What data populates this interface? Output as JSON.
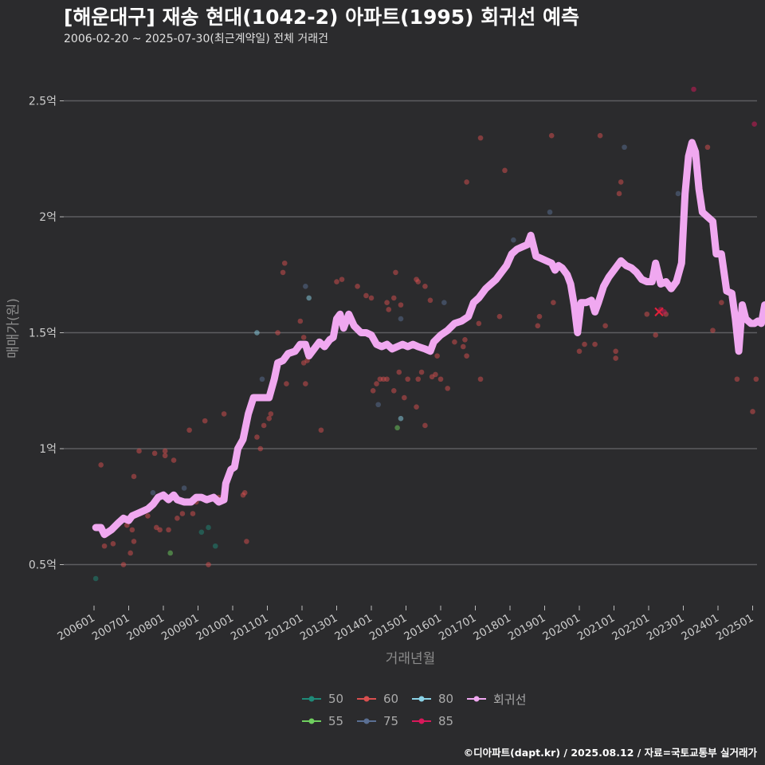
{
  "header": {
    "title": "[해운대구] 재송 현대(1042-2) 아파트(1995) 회귀선 예측",
    "subtitle": "2006-02-20 ~ 2025-07-30(최근계약일) 전체 거래건"
  },
  "caption": "©디아파트(dapt.kr) / 2025.08.12 / 자료=국토교통부 실거래가",
  "legend": {
    "items": [
      {
        "label": "50",
        "color": "#1f8a78"
      },
      {
        "label": "55",
        "color": "#6fcf5f"
      },
      {
        "label": "60",
        "color": "#d94f4f"
      },
      {
        "label": "75",
        "color": "#5a6f93"
      },
      {
        "label": "80",
        "color": "#8ad2e6"
      },
      {
        "label": "85",
        "color": "#d8185a"
      },
      {
        "label": "회귀선",
        "color": "#f0a8f0"
      }
    ]
  },
  "chart_data": {
    "type": "scatter",
    "title": "[해운대구] 재송 현대(1042-2) 아파트(1995) 회귀선 예측",
    "xlabel": "거래년월",
    "ylabel": "매매가(원)",
    "xlim": [
      2006.0,
      2026.0
    ],
    "ylim": [
      0.33,
      2.66
    ],
    "x_ticks": [
      {
        "v": 2006.0,
        "label": "200601"
      },
      {
        "v": 2007.0,
        "label": "200701"
      },
      {
        "v": 2008.0,
        "label": "200801"
      },
      {
        "v": 2009.0,
        "label": "200901"
      },
      {
        "v": 2010.0,
        "label": "201001"
      },
      {
        "v": 2011.0,
        "label": "201101"
      },
      {
        "v": 2012.0,
        "label": "201201"
      },
      {
        "v": 2013.0,
        "label": "201301"
      },
      {
        "v": 2014.0,
        "label": "201401"
      },
      {
        "v": 2015.0,
        "label": "201501"
      },
      {
        "v": 2016.0,
        "label": "201601"
      },
      {
        "v": 2017.0,
        "label": "201701"
      },
      {
        "v": 2018.0,
        "label": "201801"
      },
      {
        "v": 2019.0,
        "label": "201901"
      },
      {
        "v": 2020.0,
        "label": "202001"
      },
      {
        "v": 2021.0,
        "label": "202101"
      },
      {
        "v": 2022.0,
        "label": "202201"
      },
      {
        "v": 2023.0,
        "label": "202301"
      },
      {
        "v": 2024.0,
        "label": "202401"
      },
      {
        "v": 2025.0,
        "label": "202501"
      }
    ],
    "y_ticks": [
      {
        "v": 0.5,
        "label": "0.5억"
      },
      {
        "v": 1.0,
        "label": "1억"
      },
      {
        "v": 1.5,
        "label": "1.5억"
      },
      {
        "v": 2.0,
        "label": "2억"
      },
      {
        "v": 2.5,
        "label": "2.5억"
      }
    ],
    "series": [
      {
        "name": "50",
        "color": "#1f8a78",
        "points": [
          [
            2006.05,
            0.44
          ],
          [
            2009.1,
            0.64
          ],
          [
            2009.3,
            0.66
          ],
          [
            2009.5,
            0.58
          ]
        ]
      },
      {
        "name": "55",
        "color": "#6fcf5f",
        "points": [
          [
            2008.2,
            0.55
          ],
          [
            2014.75,
            1.09
          ]
        ]
      },
      {
        "name": "60",
        "color": "#d94f4f",
        "points": [
          [
            2006.2,
            0.93
          ],
          [
            2006.3,
            0.58
          ],
          [
            2006.55,
            0.59
          ],
          [
            2006.85,
            0.5
          ],
          [
            2006.95,
            0.67
          ],
          [
            2007.05,
            0.55
          ],
          [
            2007.15,
            0.6
          ],
          [
            2007.1,
            0.65
          ],
          [
            2007.15,
            0.88
          ],
          [
            2007.3,
            0.99
          ],
          [
            2007.55,
            0.71
          ],
          [
            2007.75,
            0.98
          ],
          [
            2007.8,
            0.66
          ],
          [
            2007.9,
            0.65
          ],
          [
            2008.05,
            0.99
          ],
          [
            2008.05,
            0.97
          ],
          [
            2008.15,
            0.65
          ],
          [
            2008.3,
            0.95
          ],
          [
            2008.4,
            0.7
          ],
          [
            2008.55,
            0.72
          ],
          [
            2008.75,
            1.08
          ],
          [
            2008.85,
            0.72
          ],
          [
            2008.95,
            0.77
          ],
          [
            2009.2,
            1.12
          ],
          [
            2009.3,
            0.5
          ],
          [
            2009.6,
            0.79
          ],
          [
            2009.75,
            1.15
          ],
          [
            2010.3,
            0.8
          ],
          [
            2010.35,
            0.81
          ],
          [
            2010.4,
            0.6
          ],
          [
            2010.7,
            1.05
          ],
          [
            2010.8,
            1.0
          ],
          [
            2010.9,
            1.1
          ],
          [
            2011.05,
            1.13
          ],
          [
            2011.1,
            1.15
          ],
          [
            2011.3,
            1.5
          ],
          [
            2011.45,
            1.76
          ],
          [
            2011.5,
            1.8
          ],
          [
            2011.55,
            1.28
          ],
          [
            2011.95,
            1.55
          ],
          [
            2012.05,
            1.48
          ],
          [
            2012.05,
            1.37
          ],
          [
            2012.1,
            1.28
          ],
          [
            2012.15,
            1.38
          ],
          [
            2012.55,
            1.08
          ],
          [
            2013.0,
            1.72
          ],
          [
            2013.15,
            1.73
          ],
          [
            2013.6,
            1.7
          ],
          [
            2013.85,
            1.66
          ],
          [
            2014.0,
            1.65
          ],
          [
            2014.05,
            1.25
          ],
          [
            2014.15,
            1.28
          ],
          [
            2014.25,
            1.3
          ],
          [
            2014.35,
            1.3
          ],
          [
            2014.45,
            1.3
          ],
          [
            2014.45,
            1.63
          ],
          [
            2014.5,
            1.6
          ],
          [
            2014.65,
            1.65
          ],
          [
            2014.7,
            1.76
          ],
          [
            2014.85,
            1.62
          ],
          [
            2014.65,
            1.25
          ],
          [
            2014.8,
            1.33
          ],
          [
            2014.95,
            1.22
          ],
          [
            2015.05,
            1.3
          ],
          [
            2015.3,
            1.18
          ],
          [
            2015.35,
            1.3
          ],
          [
            2015.3,
            1.73
          ],
          [
            2015.35,
            1.72
          ],
          [
            2015.45,
            1.33
          ],
          [
            2015.55,
            1.1
          ],
          [
            2015.55,
            1.7
          ],
          [
            2015.7,
            1.64
          ],
          [
            2015.75,
            1.31
          ],
          [
            2015.85,
            1.32
          ],
          [
            2015.9,
            1.4
          ],
          [
            2016.0,
            1.3
          ],
          [
            2016.2,
            1.26
          ],
          [
            2016.4,
            1.46
          ],
          [
            2016.65,
            1.44
          ],
          [
            2016.7,
            1.47
          ],
          [
            2016.75,
            1.4
          ],
          [
            2016.75,
            2.15
          ],
          [
            2017.1,
            1.54
          ],
          [
            2017.15,
            1.3
          ],
          [
            2017.15,
            2.34
          ],
          [
            2017.7,
            1.57
          ],
          [
            2017.85,
            2.2
          ],
          [
            2018.8,
            1.53
          ],
          [
            2018.85,
            1.57
          ],
          [
            2019.2,
            2.35
          ],
          [
            2019.25,
            1.63
          ],
          [
            2020.0,
            1.42
          ],
          [
            2020.15,
            1.45
          ],
          [
            2020.45,
            1.45
          ],
          [
            2020.6,
            2.35
          ],
          [
            2020.75,
            1.53
          ],
          [
            2021.05,
            1.39
          ],
          [
            2021.05,
            1.42
          ],
          [
            2021.15,
            2.1
          ],
          [
            2021.2,
            2.15
          ],
          [
            2021.95,
            1.58
          ],
          [
            2022.2,
            1.49
          ],
          [
            2022.5,
            1.58
          ],
          [
            2023.7,
            2.3
          ],
          [
            2023.85,
            1.51
          ],
          [
            2024.1,
            1.63
          ],
          [
            2025.0,
            1.16
          ],
          [
            2025.1,
            1.3
          ],
          [
            2024.55,
            1.3
          ]
        ]
      },
      {
        "name": "75",
        "color": "#5a6f93",
        "points": [
          [
            2007.7,
            0.81
          ],
          [
            2008.6,
            0.83
          ],
          [
            2010.85,
            1.3
          ],
          [
            2012.1,
            1.7
          ],
          [
            2014.2,
            1.19
          ],
          [
            2014.85,
            1.56
          ],
          [
            2016.1,
            1.63
          ],
          [
            2018.1,
            1.9
          ],
          [
            2019.15,
            2.02
          ],
          [
            2021.3,
            2.3
          ],
          [
            2022.85,
            2.1
          ]
        ]
      },
      {
        "name": "80",
        "color": "#8ad2e6",
        "points": [
          [
            2010.7,
            1.5
          ],
          [
            2012.2,
            1.65
          ],
          [
            2014.85,
            1.13
          ]
        ]
      },
      {
        "name": "85",
        "color": "#d8185a",
        "points": [
          [
            2022.35,
            1.6
          ],
          [
            2022.45,
            1.59
          ],
          [
            2023.3,
            2.55
          ],
          [
            2025.05,
            2.4
          ]
        ]
      }
    ],
    "regression": {
      "name": "회귀선",
      "color": "#f0a8f0",
      "points": [
        [
          2006.05,
          0.66
        ],
        [
          2006.2,
          0.66
        ],
        [
          2006.3,
          0.63
        ],
        [
          2006.5,
          0.65
        ],
        [
          2006.7,
          0.68
        ],
        [
          2006.85,
          0.7
        ],
        [
          2007.0,
          0.69
        ],
        [
          2007.1,
          0.71
        ],
        [
          2007.25,
          0.72
        ],
        [
          2007.4,
          0.73
        ],
        [
          2007.55,
          0.74
        ],
        [
          2007.7,
          0.76
        ],
        [
          2007.85,
          0.79
        ],
        [
          2008.0,
          0.8
        ],
        [
          2008.15,
          0.78
        ],
        [
          2008.3,
          0.8
        ],
        [
          2008.4,
          0.78
        ],
        [
          2008.6,
          0.77
        ],
        [
          2008.8,
          0.77
        ],
        [
          2008.95,
          0.79
        ],
        [
          2009.1,
          0.79
        ],
        [
          2009.25,
          0.78
        ],
        [
          2009.45,
          0.79
        ],
        [
          2009.6,
          0.77
        ],
        [
          2009.75,
          0.78
        ],
        [
          2009.8,
          0.85
        ],
        [
          2009.95,
          0.91
        ],
        [
          2010.05,
          0.92
        ],
        [
          2010.15,
          1.0
        ],
        [
          2010.3,
          1.04
        ],
        [
          2010.45,
          1.15
        ],
        [
          2010.6,
          1.22
        ],
        [
          2010.8,
          1.22
        ],
        [
          2011.05,
          1.22
        ],
        [
          2011.2,
          1.3
        ],
        [
          2011.3,
          1.37
        ],
        [
          2011.45,
          1.38
        ],
        [
          2011.6,
          1.41
        ],
        [
          2011.8,
          1.42
        ],
        [
          2011.95,
          1.45
        ],
        [
          2012.1,
          1.45
        ],
        [
          2012.2,
          1.4
        ],
        [
          2012.35,
          1.43
        ],
        [
          2012.5,
          1.46
        ],
        [
          2012.65,
          1.44
        ],
        [
          2012.8,
          1.47
        ],
        [
          2012.9,
          1.48
        ],
        [
          2013.0,
          1.56
        ],
        [
          2013.1,
          1.58
        ],
        [
          2013.2,
          1.52
        ],
        [
          2013.35,
          1.58
        ],
        [
          2013.5,
          1.53
        ],
        [
          2013.7,
          1.5
        ],
        [
          2013.85,
          1.5
        ],
        [
          2014.0,
          1.49
        ],
        [
          2014.15,
          1.45
        ],
        [
          2014.3,
          1.44
        ],
        [
          2014.45,
          1.45
        ],
        [
          2014.6,
          1.43
        ],
        [
          2014.75,
          1.44
        ],
        [
          2014.9,
          1.45
        ],
        [
          2015.05,
          1.44
        ],
        [
          2015.2,
          1.45
        ],
        [
          2015.35,
          1.44
        ],
        [
          2015.55,
          1.43
        ],
        [
          2015.7,
          1.42
        ],
        [
          2015.8,
          1.46
        ],
        [
          2016.0,
          1.49
        ],
        [
          2016.2,
          1.51
        ],
        [
          2016.4,
          1.54
        ],
        [
          2016.6,
          1.55
        ],
        [
          2016.8,
          1.57
        ],
        [
          2016.95,
          1.63
        ],
        [
          2017.1,
          1.65
        ],
        [
          2017.3,
          1.69
        ],
        [
          2017.45,
          1.71
        ],
        [
          2017.6,
          1.73
        ],
        [
          2017.75,
          1.76
        ],
        [
          2017.9,
          1.79
        ],
        [
          2018.05,
          1.84
        ],
        [
          2018.2,
          1.86
        ],
        [
          2018.35,
          1.87
        ],
        [
          2018.5,
          1.88
        ],
        [
          2018.6,
          1.92
        ],
        [
          2018.75,
          1.83
        ],
        [
          2018.9,
          1.82
        ],
        [
          2019.05,
          1.81
        ],
        [
          2019.2,
          1.8
        ],
        [
          2019.3,
          1.77
        ],
        [
          2019.4,
          1.79
        ],
        [
          2019.5,
          1.78
        ],
        [
          2019.65,
          1.75
        ],
        [
          2019.75,
          1.71
        ],
        [
          2019.85,
          1.62
        ],
        [
          2019.95,
          1.5
        ],
        [
          2020.05,
          1.63
        ],
        [
          2020.2,
          1.63
        ],
        [
          2020.35,
          1.64
        ],
        [
          2020.45,
          1.59
        ],
        [
          2020.55,
          1.63
        ],
        [
          2020.7,
          1.7
        ],
        [
          2020.85,
          1.74
        ],
        [
          2021.05,
          1.78
        ],
        [
          2021.2,
          1.81
        ],
        [
          2021.35,
          1.79
        ],
        [
          2021.5,
          1.78
        ],
        [
          2021.65,
          1.76
        ],
        [
          2021.8,
          1.73
        ],
        [
          2021.95,
          1.72
        ],
        [
          2022.1,
          1.72
        ],
        [
          2022.2,
          1.8
        ],
        [
          2022.35,
          1.71
        ],
        [
          2022.5,
          1.72
        ],
        [
          2022.65,
          1.69
        ],
        [
          2022.8,
          1.72
        ],
        [
          2022.95,
          1.8
        ],
        [
          2023.05,
          2.1
        ],
        [
          2023.15,
          2.26
        ],
        [
          2023.25,
          2.32
        ],
        [
          2023.35,
          2.28
        ],
        [
          2023.45,
          2.12
        ],
        [
          2023.55,
          2.02
        ],
        [
          2023.7,
          2.0
        ],
        [
          2023.85,
          1.98
        ],
        [
          2023.95,
          1.84
        ],
        [
          2024.1,
          1.84
        ],
        [
          2024.25,
          1.68
        ],
        [
          2024.4,
          1.67
        ],
        [
          2024.5,
          1.56
        ],
        [
          2024.6,
          1.42
        ],
        [
          2024.7,
          1.62
        ],
        [
          2024.8,
          1.56
        ],
        [
          2024.95,
          1.54
        ],
        [
          2025.05,
          1.54
        ],
        [
          2025.15,
          1.55
        ],
        [
          2025.25,
          1.54
        ],
        [
          2025.35,
          1.62
        ],
        [
          2025.45,
          1.62
        ]
      ]
    },
    "marker": {
      "x": 2022.3,
      "y": 1.59,
      "symbol": "x",
      "color": "#e0213a"
    }
  }
}
